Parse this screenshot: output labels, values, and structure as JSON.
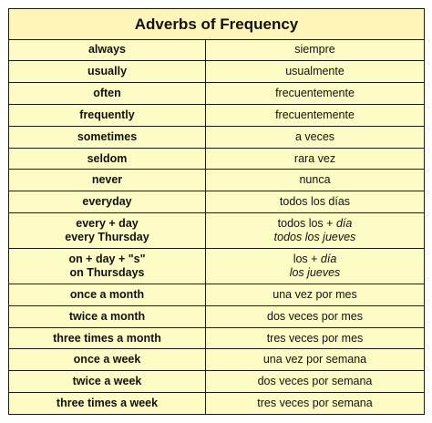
{
  "title": "Adverbs of Frequency",
  "rows": [
    {
      "en": "always",
      "es": "siempre"
    },
    {
      "en": "usually",
      "es": "usualmente"
    },
    {
      "en": "often",
      "es": "frecuentemente"
    },
    {
      "en": "frequently",
      "es": "frecuentemente"
    },
    {
      "en": "sometimes",
      "es": "a veces"
    },
    {
      "en": "seldom",
      "es": "rara vez"
    },
    {
      "en": "never",
      "es": "nunca"
    },
    {
      "en": "everyday",
      "es": "todos los días"
    },
    {
      "en1": "every + day",
      "en2": "every Thursday",
      "es1_a": "todos los + ",
      "es1_b": "día",
      "es2": "todos los jueves"
    },
    {
      "en1": "on + day + \"s\"",
      "en2": "on Thursdays",
      "es1_a": "los + ",
      "es1_b": "día",
      "es2": "los jueves"
    },
    {
      "en": "once a month",
      "es": "una vez por mes"
    },
    {
      "en": "twice a month",
      "es": "dos veces por mes"
    },
    {
      "en": "three times a month",
      "es": "tres veces por mes"
    },
    {
      "en": "once a week",
      "es": "una vez por semana"
    },
    {
      "en": "twice a week",
      "es": "dos veces por semana"
    },
    {
      "en": "three times a week",
      "es": "tres veces por semana"
    }
  ],
  "colors": {
    "background": "#fdfbc4",
    "border": "#1a1a1a"
  }
}
